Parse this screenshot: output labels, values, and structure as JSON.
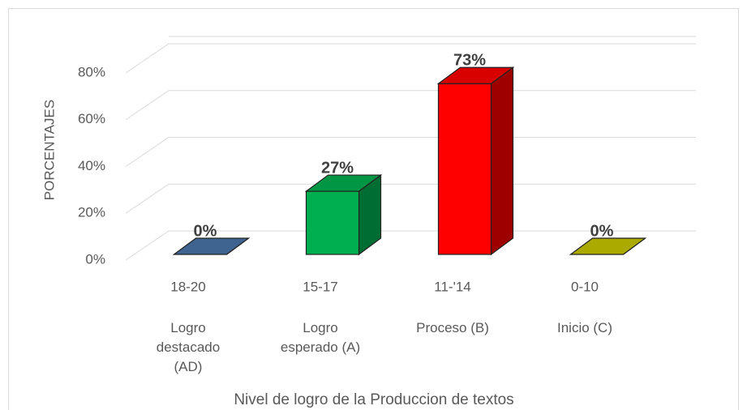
{
  "chart_data": {
    "type": "bar3d",
    "categories": [
      "18-20",
      "15-17",
      "11-'14",
      "0-10"
    ],
    "category_labels": [
      "Logro destacado (AD)",
      "Logro esperado (A)",
      "Proceso (B)",
      "Inicio (C)"
    ],
    "values": [
      0,
      27,
      73,
      0
    ],
    "value_labels": [
      "0%",
      "27%",
      "73%",
      "0%"
    ],
    "colors": [
      "#4a76a8",
      "#00b050",
      "#ff0000",
      "#c8c800"
    ],
    "ylim": [
      0,
      80
    ],
    "yticks": [
      {
        "value": 0,
        "label": "0%"
      },
      {
        "value": 20,
        "label": "20%"
      },
      {
        "value": 40,
        "label": "40%"
      },
      {
        "value": 60,
        "label": "60%"
      },
      {
        "value": 80,
        "label": "80%"
      }
    ],
    "ylabel": "PORCENTAJES",
    "xlabel": "Nivel de logro de la Produccion de textos",
    "grid": true
  }
}
